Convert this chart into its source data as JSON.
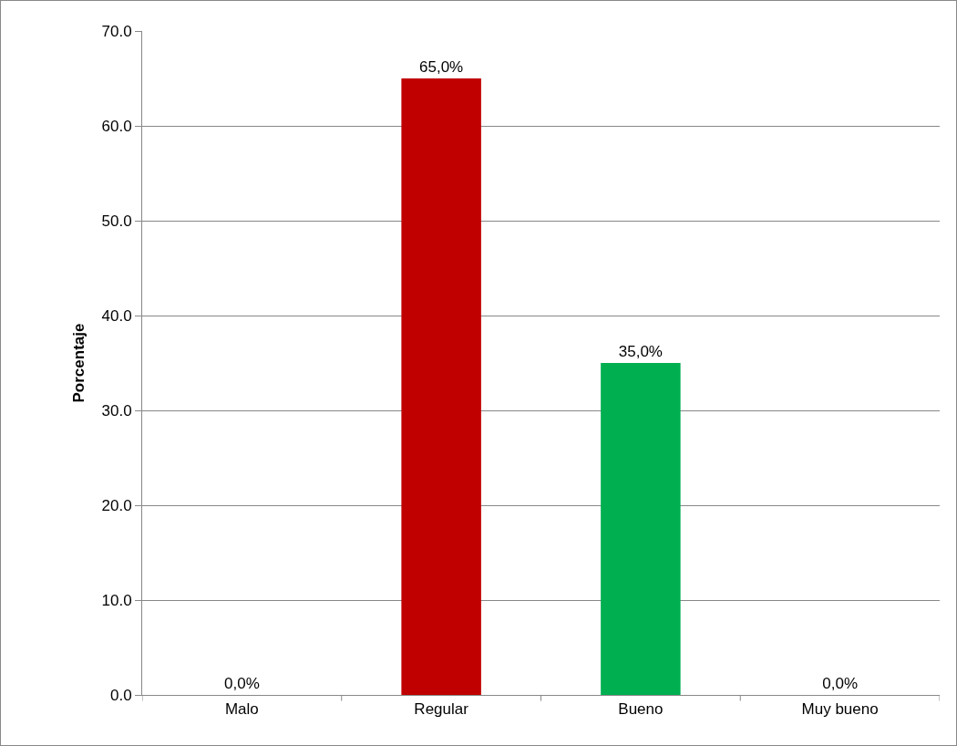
{
  "chart_data": {
    "type": "bar",
    "ylabel": "Porcentaje",
    "categories": [
      "Malo",
      "Regular",
      "Bueno",
      "Muy bueno"
    ],
    "values": [
      0,
      65,
      35,
      0
    ],
    "colors": [
      "#c00000",
      "#c00000",
      "#00b050",
      "#00b050"
    ],
    "value_labels": [
      "0,0%",
      "65,0%",
      "35,0%",
      "0,0%"
    ],
    "ylim": [
      0,
      70
    ],
    "yticks": [
      {
        "value": 0,
        "label": "0.0"
      },
      {
        "value": 10,
        "label": "10.0"
      },
      {
        "value": 20,
        "label": "20.0"
      },
      {
        "value": 30,
        "label": "30.0"
      },
      {
        "value": 40,
        "label": "40.0"
      },
      {
        "value": 50,
        "label": "50.0"
      },
      {
        "value": 60,
        "label": "60.0"
      },
      {
        "value": 70,
        "label": "70.0"
      }
    ],
    "grid": "y"
  }
}
